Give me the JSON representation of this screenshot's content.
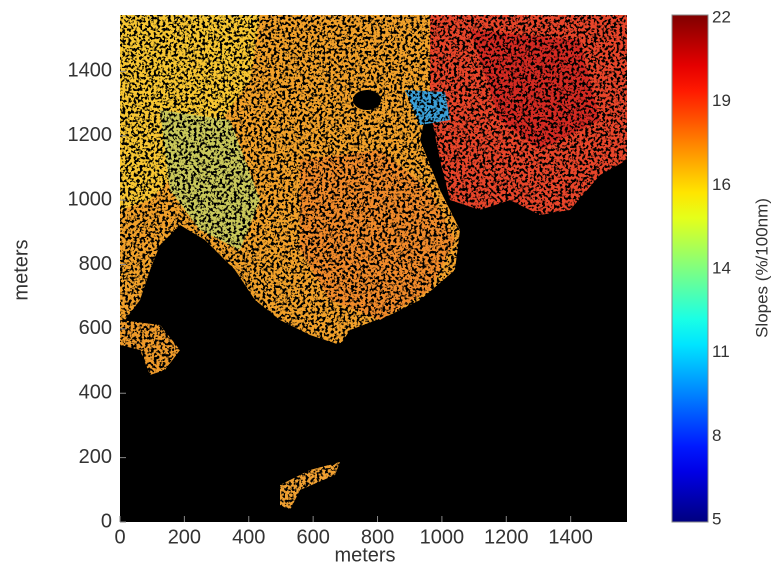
{
  "chart_data": {
    "type": "heatmap",
    "xlabel": "meters",
    "ylabel": "meters",
    "xlim": [
      0,
      1575
    ],
    "ylim": [
      0,
      1575
    ],
    "xticks": [
      0,
      200,
      400,
      600,
      800,
      1000,
      1200,
      1400
    ],
    "yticks": [
      0,
      200,
      400,
      600,
      800,
      1000,
      1200,
      1400
    ],
    "colorbar": {
      "label": "Slopes (%/100nm)",
      "lim": [
        5,
        22
      ],
      "colormap": "jet",
      "ticks": [
        5,
        {
          "value": 7.83,
          "label": "8"
        },
        {
          "value": 10.67,
          "label": "11"
        },
        {
          "value": 13.5,
          "label": "14"
        },
        {
          "value": 16.33,
          "label": "16"
        },
        {
          "value": 19.17,
          "label": "19"
        },
        22
      ]
    }
  }
}
